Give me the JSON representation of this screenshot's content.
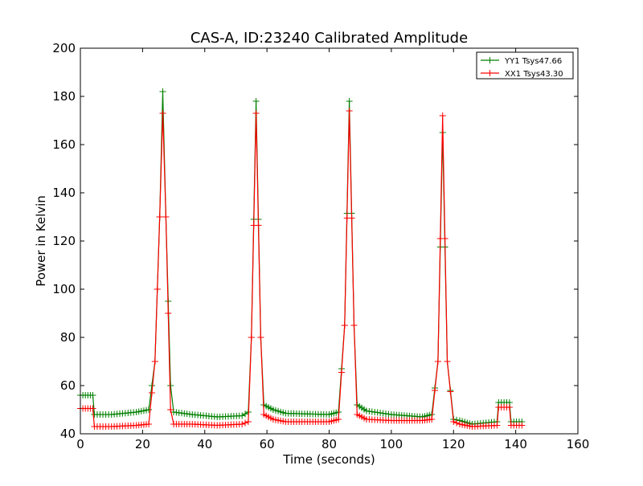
{
  "chart_data": {
    "type": "line",
    "title": "CAS-A, ID:23240 Calibrated Amplitude",
    "xlabel": "Time (seconds)",
    "ylabel": "Power in Kelvin",
    "xlim": [
      0,
      160
    ],
    "ylim": [
      40,
      200
    ],
    "xticks": [
      0,
      20,
      40,
      60,
      80,
      100,
      120,
      140,
      160
    ],
    "yticks": [
      40,
      60,
      80,
      100,
      120,
      140,
      160,
      180,
      200
    ],
    "grid": false,
    "legend_position": "top-right",
    "marker": "+",
    "series": [
      {
        "name": "YY1 Tsys47.66",
        "color": "#008000",
        "points": [
          [
            0,
            56
          ],
          [
            4,
            56
          ],
          [
            4.5,
            48
          ],
          [
            10,
            48
          ],
          [
            18,
            49
          ],
          [
            22,
            50
          ],
          [
            24,
            70
          ],
          [
            25.5,
            130
          ],
          [
            26.5,
            182
          ],
          [
            27.5,
            130
          ],
          [
            29,
            60
          ],
          [
            30,
            49
          ],
          [
            36,
            48
          ],
          [
            44,
            47
          ],
          [
            52,
            47.5
          ],
          [
            54,
            49
          ],
          [
            55,
            80
          ],
          [
            56.5,
            178
          ],
          [
            58,
            80
          ],
          [
            59,
            52
          ],
          [
            62,
            50
          ],
          [
            66,
            48.5
          ],
          [
            80,
            48
          ],
          [
            83,
            49
          ],
          [
            85,
            85
          ],
          [
            86.5,
            178
          ],
          [
            88,
            85
          ],
          [
            89,
            52
          ],
          [
            92,
            49.5
          ],
          [
            100,
            48
          ],
          [
            110,
            47
          ],
          [
            113,
            48
          ],
          [
            115,
            70
          ],
          [
            116.5,
            165
          ],
          [
            118,
            70
          ],
          [
            120,
            46
          ],
          [
            122,
            45.5
          ],
          [
            126,
            44
          ],
          [
            134,
            45
          ],
          [
            134.5,
            53
          ],
          [
            138,
            53
          ],
          [
            138.5,
            45
          ],
          [
            142,
            45
          ]
        ]
      },
      {
        "name": "XX1 Tsys43.30",
        "color": "#ff0000",
        "points": [
          [
            0,
            50.5
          ],
          [
            4,
            50.5
          ],
          [
            4.5,
            43
          ],
          [
            10,
            43
          ],
          [
            18,
            43.5
          ],
          [
            22,
            44
          ],
          [
            24,
            70
          ],
          [
            25.5,
            130
          ],
          [
            26.5,
            173
          ],
          [
            27.5,
            130
          ],
          [
            29,
            50
          ],
          [
            30,
            44
          ],
          [
            36,
            44
          ],
          [
            44,
            43.5
          ],
          [
            52,
            44
          ],
          [
            54,
            45
          ],
          [
            55,
            80
          ],
          [
            56.5,
            173
          ],
          [
            58,
            80
          ],
          [
            59,
            48
          ],
          [
            62,
            46
          ],
          [
            66,
            45
          ],
          [
            80,
            45
          ],
          [
            83,
            46
          ],
          [
            85,
            85
          ],
          [
            86.5,
            174
          ],
          [
            88,
            85
          ],
          [
            89,
            48
          ],
          [
            92,
            46
          ],
          [
            100,
            45.5
          ],
          [
            110,
            45.5
          ],
          [
            113,
            46
          ],
          [
            115,
            70
          ],
          [
            116.5,
            172
          ],
          [
            118,
            70
          ],
          [
            120,
            45
          ],
          [
            122,
            44
          ],
          [
            126,
            43
          ],
          [
            134,
            43.5
          ],
          [
            134.5,
            51
          ],
          [
            138,
            51
          ],
          [
            138.5,
            43.5
          ],
          [
            142,
            43.5
          ]
        ]
      }
    ]
  }
}
